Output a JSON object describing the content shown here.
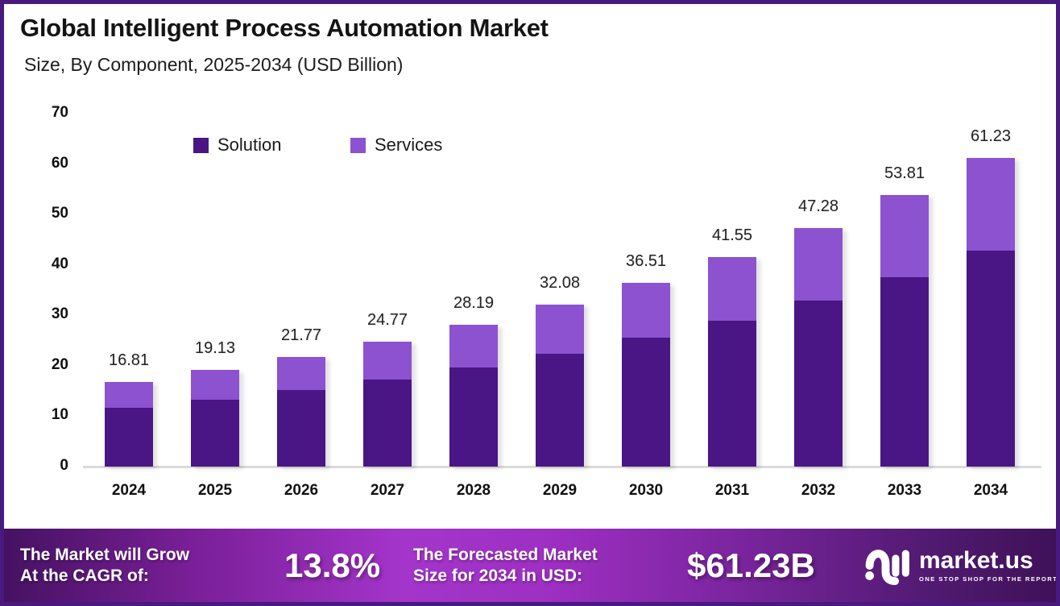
{
  "header": {
    "title": "Global Intelligent Process Automation Market",
    "subtitle": "Size, By Component, 2025-2034 (USD Billion)"
  },
  "chart_data": {
    "type": "bar",
    "stacked": true,
    "categories": [
      "2024",
      "2025",
      "2026",
      "2027",
      "2028",
      "2029",
      "2030",
      "2031",
      "2032",
      "2033",
      "2034"
    ],
    "series": [
      {
        "name": "Solution",
        "color": "#4a1584",
        "values": [
          11.66,
          13.3,
          15.2,
          17.3,
          19.6,
          22.4,
          25.5,
          29.0,
          33.0,
          37.6,
          42.8
        ]
      },
      {
        "name": "Services",
        "color": "#8c52d0",
        "values": [
          5.15,
          5.83,
          6.57,
          7.47,
          8.59,
          9.68,
          11.01,
          12.55,
          14.28,
          16.21,
          18.43
        ]
      }
    ],
    "totals": [
      16.81,
      19.13,
      21.77,
      24.77,
      28.19,
      32.08,
      36.51,
      41.55,
      47.28,
      53.81,
      61.23
    ],
    "total_labels": [
      "16.81",
      "19.13",
      "21.77",
      "24.77",
      "28.19",
      "32.08",
      "36.51",
      "41.55",
      "47.28",
      "53.81",
      "61.23"
    ],
    "title": "Global Intelligent Process Automation Market",
    "subtitle": "Size, By Component, 2025-2034 (USD Billion)",
    "xlabel": "",
    "ylabel": "",
    "ylim": [
      0,
      70
    ],
    "yticks": [
      0,
      10,
      20,
      30,
      40,
      50,
      60,
      70
    ],
    "grid": false,
    "legend_position": "top-left-inside"
  },
  "footer": {
    "cagr_label": "The Market will Grow\nAt the CAGR of:",
    "cagr_value": "13.8%",
    "forecast_label": "The Forecasted Market\nSize for 2034 in USD:",
    "forecast_value": "$61.23B",
    "logo": {
      "name": "market.us",
      "tagline": "ONE STOP SHOP FOR THE REPORTS"
    }
  },
  "colors": {
    "solution_bar": "#4a1584",
    "services_bar": "#8c52d0",
    "frame_border": "#48197e",
    "footer_gradient_left": "#451261",
    "footer_gradient_center": "#a435ca",
    "footer_gradient_right": "#3f1158",
    "axis_line": "#dadada",
    "text_dark": "#141414",
    "text_light": "#ffffff"
  }
}
